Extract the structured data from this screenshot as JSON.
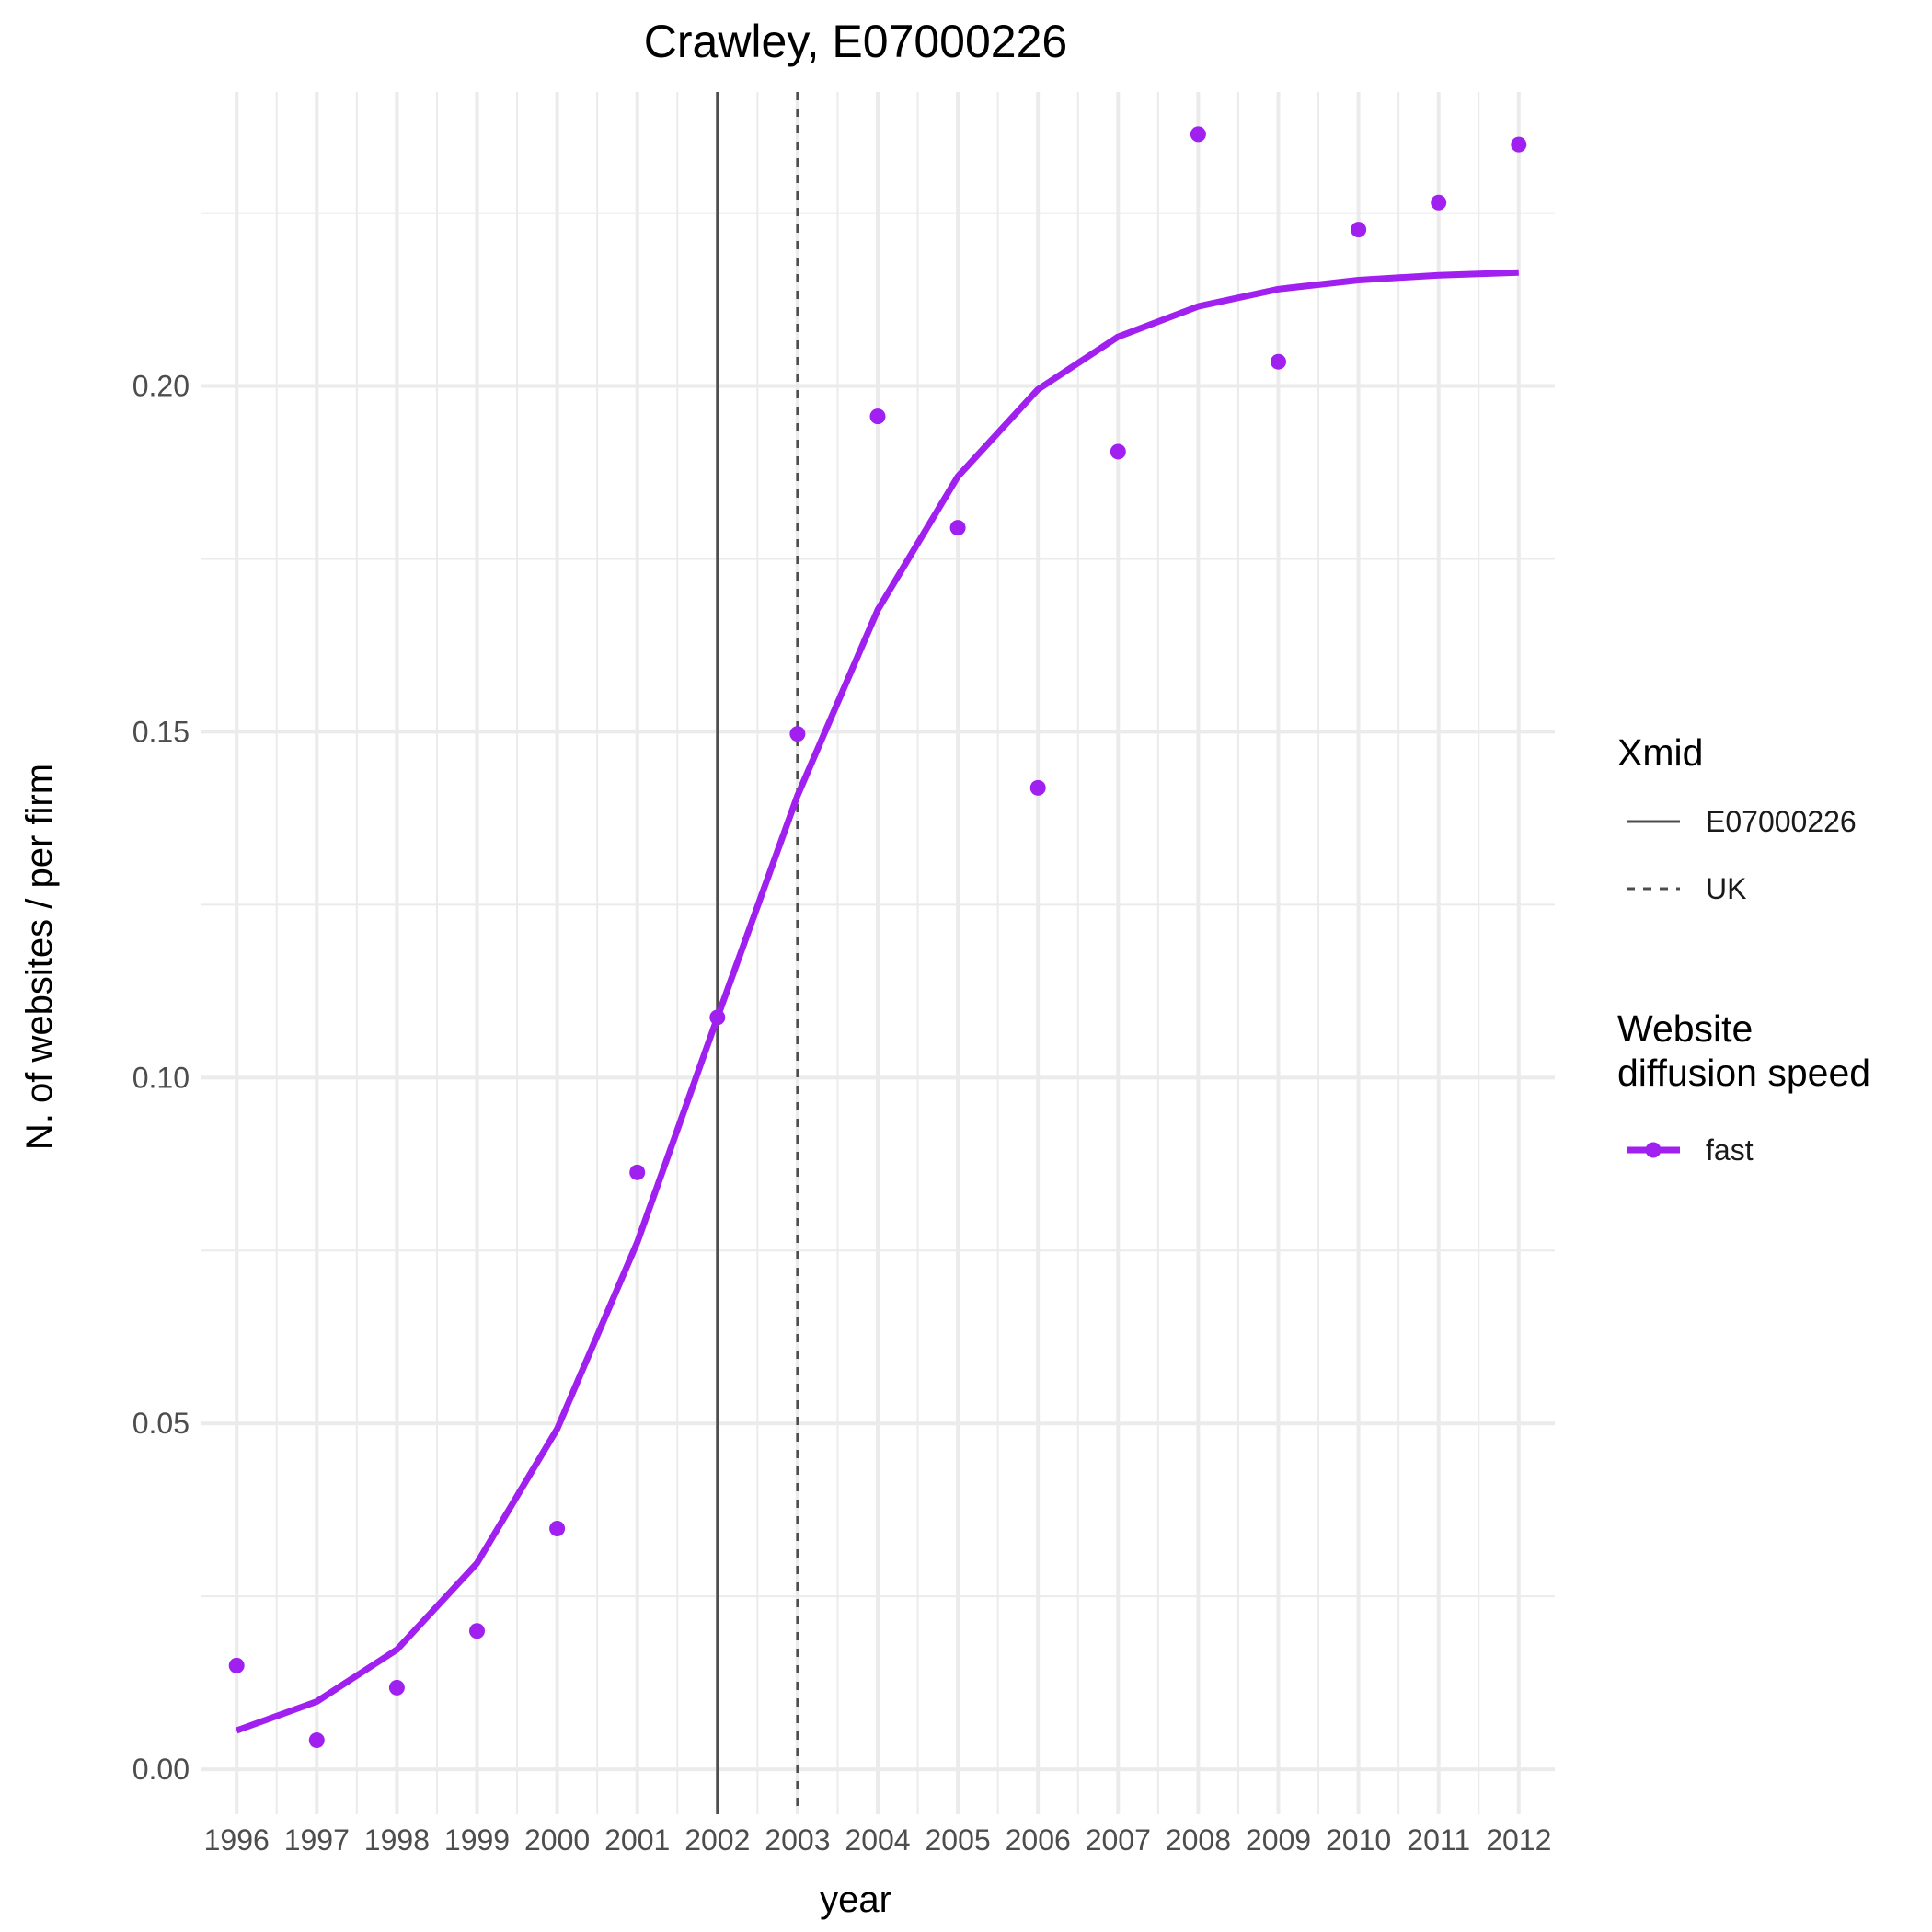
{
  "chart_data": {
    "type": "line",
    "title": "Crawley, E07000226",
    "xlabel": "year",
    "ylabel": "N. of websites / per firm",
    "x": [
      1996,
      1997,
      1998,
      1999,
      2000,
      2001,
      2002,
      2003,
      2004,
      2005,
      2006,
      2007,
      2008,
      2009,
      2010,
      2011,
      2012
    ],
    "xlim": [
      1995.55,
      2012.45
    ],
    "ylim": [
      -0.0065,
      0.2425
    ],
    "y_ticks": [
      0.0,
      0.05,
      0.1,
      0.15,
      0.2
    ],
    "y_tick_labels": [
      "0.00",
      "0.05",
      "0.10",
      "0.15",
      "0.20"
    ],
    "x_tick_labels": [
      "1996",
      "1997",
      "1998",
      "1999",
      "2000",
      "2001",
      "2002",
      "2003",
      "2004",
      "2005",
      "2006",
      "2007",
      "2008",
      "2009",
      "2010",
      "2011",
      "2012"
    ],
    "grid": true,
    "legend_placement": "right",
    "series": [
      {
        "name": "fast",
        "kind": "points",
        "color": "#A020F0",
        "values": [
          0.015,
          0.0042,
          0.0118,
          0.02,
          0.0348,
          0.0863,
          0.1087,
          0.1497,
          0.1956,
          0.1795,
          0.1419,
          0.1905,
          0.2364,
          0.2035,
          0.2226,
          0.2265,
          0.2349
        ]
      },
      {
        "name": "fast",
        "kind": "fitted-line",
        "color": "#A020F0",
        "values": [
          0.0056,
          0.0098,
          0.0173,
          0.0298,
          0.0492,
          0.0762,
          0.1087,
          0.1408,
          0.1676,
          0.1869,
          0.1995,
          0.2071,
          0.2115,
          0.214,
          0.2153,
          0.216,
          0.2164
        ]
      }
    ],
    "vlines": [
      {
        "group": "E07000226",
        "x": 2002,
        "linetype": "solid",
        "color": "#4d4d4d"
      },
      {
        "group": "UK",
        "x": 2003,
        "linetype": "dashed",
        "color": "#4d4d4d"
      }
    ],
    "legends": [
      {
        "title": [
          "Xmid"
        ],
        "entries": [
          {
            "label": "E07000226",
            "linetype": "solid"
          },
          {
            "label": "UK",
            "linetype": "dashed"
          }
        ]
      },
      {
        "title": [
          "Website",
          "diffusion speed"
        ],
        "entries": [
          {
            "label": "fast",
            "color": "#A020F0"
          }
        ]
      }
    ]
  }
}
